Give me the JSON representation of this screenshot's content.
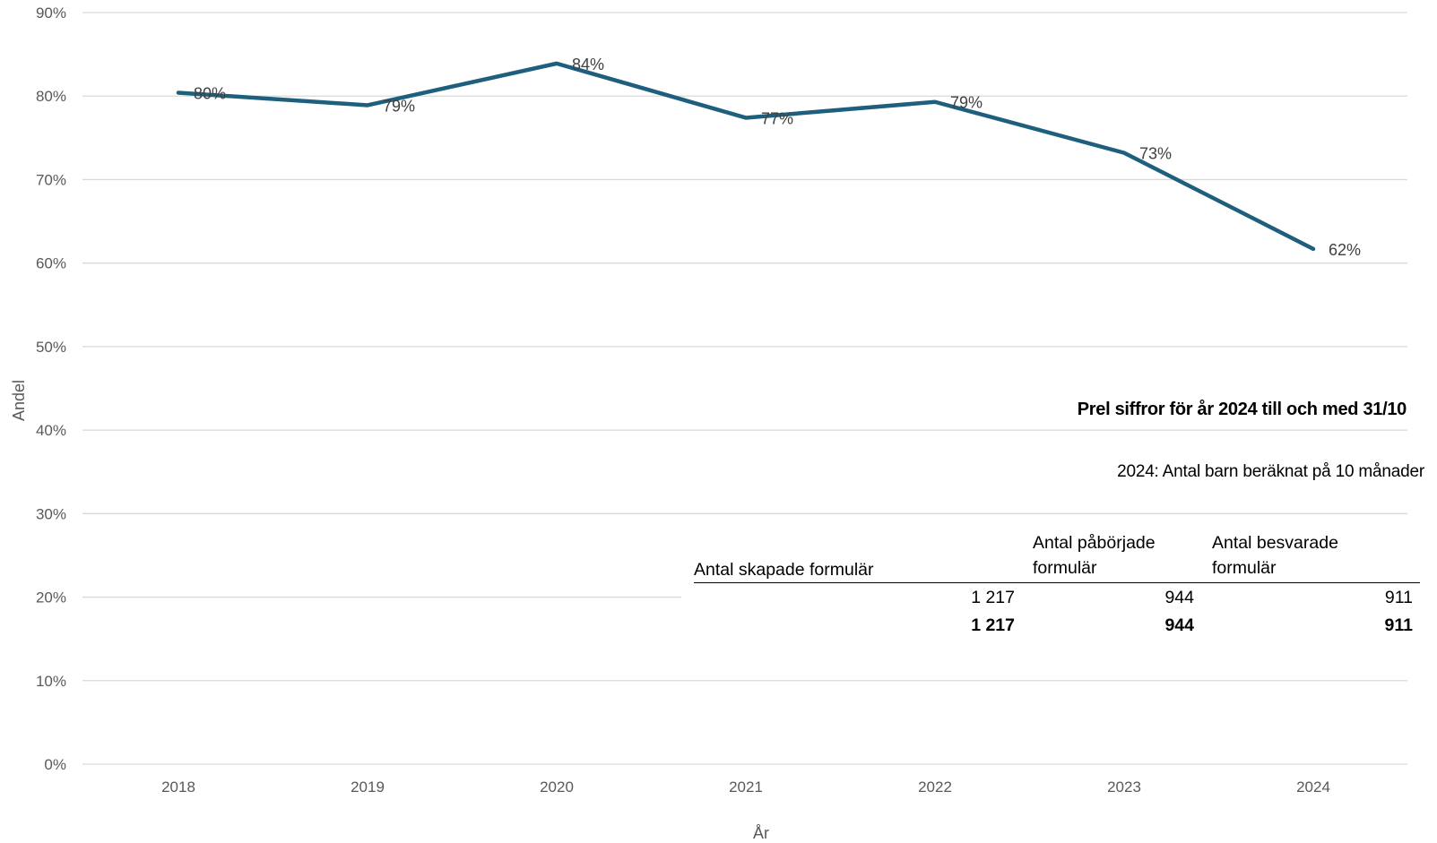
{
  "chart_data": {
    "type": "line",
    "title": "",
    "xlabel": "År",
    "ylabel": "Andel",
    "ylim": [
      0,
      90
    ],
    "y_ticks": [
      "0%",
      "10%",
      "20%",
      "30%",
      "40%",
      "50%",
      "60%",
      "70%",
      "80%",
      "90%"
    ],
    "grid": true,
    "series_color": "#1f5f7e",
    "x": [
      "2018",
      "2019",
      "2020",
      "2021",
      "2022",
      "2023",
      "2024"
    ],
    "series": [
      {
        "values": [
          80.4,
          78.9,
          83.9,
          77.4,
          79.3,
          73.2,
          61.7
        ],
        "labels": [
          "80%",
          "79%",
          "84%",
          "77%",
          "79%",
          "73%",
          "62%"
        ]
      }
    ]
  },
  "annotations": {
    "prelim_note": "Prel siffror för år 2024 till och med 31/10",
    "months_note": "2024: Antal barn beräknat på 10 månader"
  },
  "table": {
    "headers": [
      "Antal skapade formulär",
      "Antal påbörjade formulär",
      "Antal besvarade formulär"
    ],
    "rows": [
      {
        "values": [
          "1 217",
          "944",
          "911"
        ],
        "bold": false
      },
      {
        "values": [
          "1 217",
          "944",
          "911"
        ],
        "bold": true
      }
    ]
  }
}
